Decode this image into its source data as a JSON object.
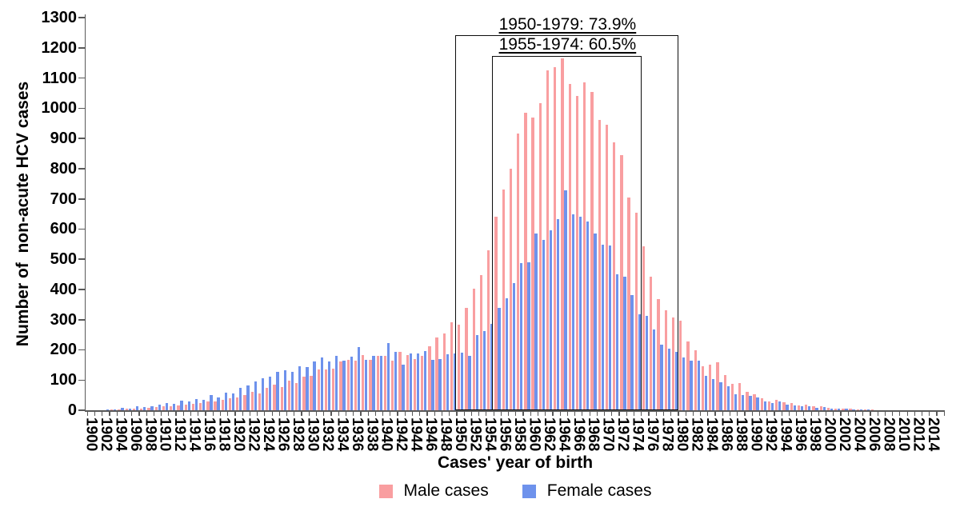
{
  "axes": {
    "y_label": "Number of  non-acute HCV cases",
    "x_label": "Cases' year of birth",
    "y_ticks": [
      0,
      100,
      200,
      300,
      400,
      500,
      600,
      700,
      800,
      900,
      1000,
      1100,
      1200,
      1300
    ],
    "x_tick_labels": [
      "1900",
      "1902",
      "1904",
      "1906",
      "1908",
      "1910",
      "1912",
      "1914",
      "1916",
      "1918",
      "1920",
      "1922",
      "1924",
      "1926",
      "1928",
      "1930",
      "1932",
      "1934",
      "1936",
      "1938",
      "1940",
      "1942",
      "1944",
      "1946",
      "1948",
      "1950",
      "1952",
      "1954",
      "1956",
      "1958",
      "1960",
      "1962",
      "1964",
      "1966",
      "1968",
      "1970",
      "1972",
      "1974",
      "1976",
      "1978",
      "1980",
      "1982",
      "1984",
      "1986",
      "1988",
      "1990",
      "1992",
      "1994",
      "1996",
      "1998",
      "2000",
      "2002",
      "2004",
      "2006",
      "2008",
      "2010",
      "2012",
      "2014"
    ]
  },
  "legend": {
    "position": "bottom",
    "items": [
      {
        "label": "Male cases",
        "color": "#F99EA0"
      },
      {
        "label": "Female cases",
        "color": "#6E92EC"
      }
    ]
  },
  "chart_data": {
    "type": "bar",
    "title": "",
    "xlabel": "Cases' year of birth",
    "ylabel": "Number of  non-acute HCV cases",
    "x_start": 1900,
    "x_end": 2015,
    "ylim": [
      0,
      1300
    ],
    "grid": false,
    "legend_position": "bottom",
    "annotations": [
      {
        "label": "1950-1979: 73.9%",
        "range": [
          1950,
          1979
        ]
      },
      {
        "label": "1955-1974: 60.5%",
        "range": [
          1955,
          1974
        ]
      }
    ],
    "series": [
      {
        "name": "Male cases",
        "color": "#F99EA0",
        "values": [
          1,
          1,
          1,
          2,
          3,
          4,
          5,
          6,
          8,
          10,
          12,
          14,
          17,
          19,
          21,
          23,
          28,
          30,
          35,
          41,
          43,
          51,
          60,
          56,
          73,
          84,
          77,
          99,
          90,
          110,
          115,
          134,
          136,
          139,
          161,
          166,
          163,
          183,
          168,
          179,
          180,
          165,
          192,
          183,
          170,
          179,
          212,
          240,
          255,
          290,
          283,
          340,
          402,
          447,
          530,
          640,
          730,
          800,
          915,
          985,
          968,
          1018,
          1125,
          1135,
          1165,
          1080,
          1040,
          1085,
          1055,
          960,
          945,
          887,
          845,
          705,
          655,
          544,
          442,
          367,
          331,
          307,
          296,
          228,
          198,
          145,
          150,
          160,
          116,
          88,
          90,
          61,
          52,
          39,
          28,
          34,
          26,
          24,
          17,
          19,
          12,
          14,
          8,
          6,
          5,
          4,
          3,
          2,
          2,
          1,
          1,
          0,
          0,
          0,
          0,
          0,
          0,
          0
        ]
      },
      {
        "name": "Female cases",
        "color": "#6E92EC",
        "values": [
          1,
          1,
          2,
          3,
          8,
          6,
          12,
          10,
          14,
          19,
          23,
          21,
          32,
          28,
          37,
          35,
          50,
          43,
          58,
          55,
          75,
          82,
          96,
          105,
          110,
          126,
          132,
          127,
          145,
          142,
          161,
          174,
          161,
          180,
          165,
          178,
          208,
          168,
          179,
          180,
          222,
          192,
          152,
          189,
          189,
          197,
          168,
          169,
          185,
          187,
          190,
          180,
          250,
          262,
          287,
          338,
          371,
          420,
          486,
          490,
          586,
          564,
          597,
          634,
          728,
          650,
          640,
          624,
          584,
          548,
          545,
          449,
          442,
          382,
          318,
          313,
          267,
          216,
          205,
          194,
          176,
          163,
          165,
          114,
          103,
          92,
          79,
          52,
          50,
          48,
          42,
          30,
          24,
          30,
          19,
          17,
          12,
          14,
          8,
          10,
          5,
          4,
          4,
          3,
          2,
          2,
          1,
          1,
          0,
          1,
          0,
          0,
          0,
          0,
          0,
          0
        ]
      }
    ]
  }
}
